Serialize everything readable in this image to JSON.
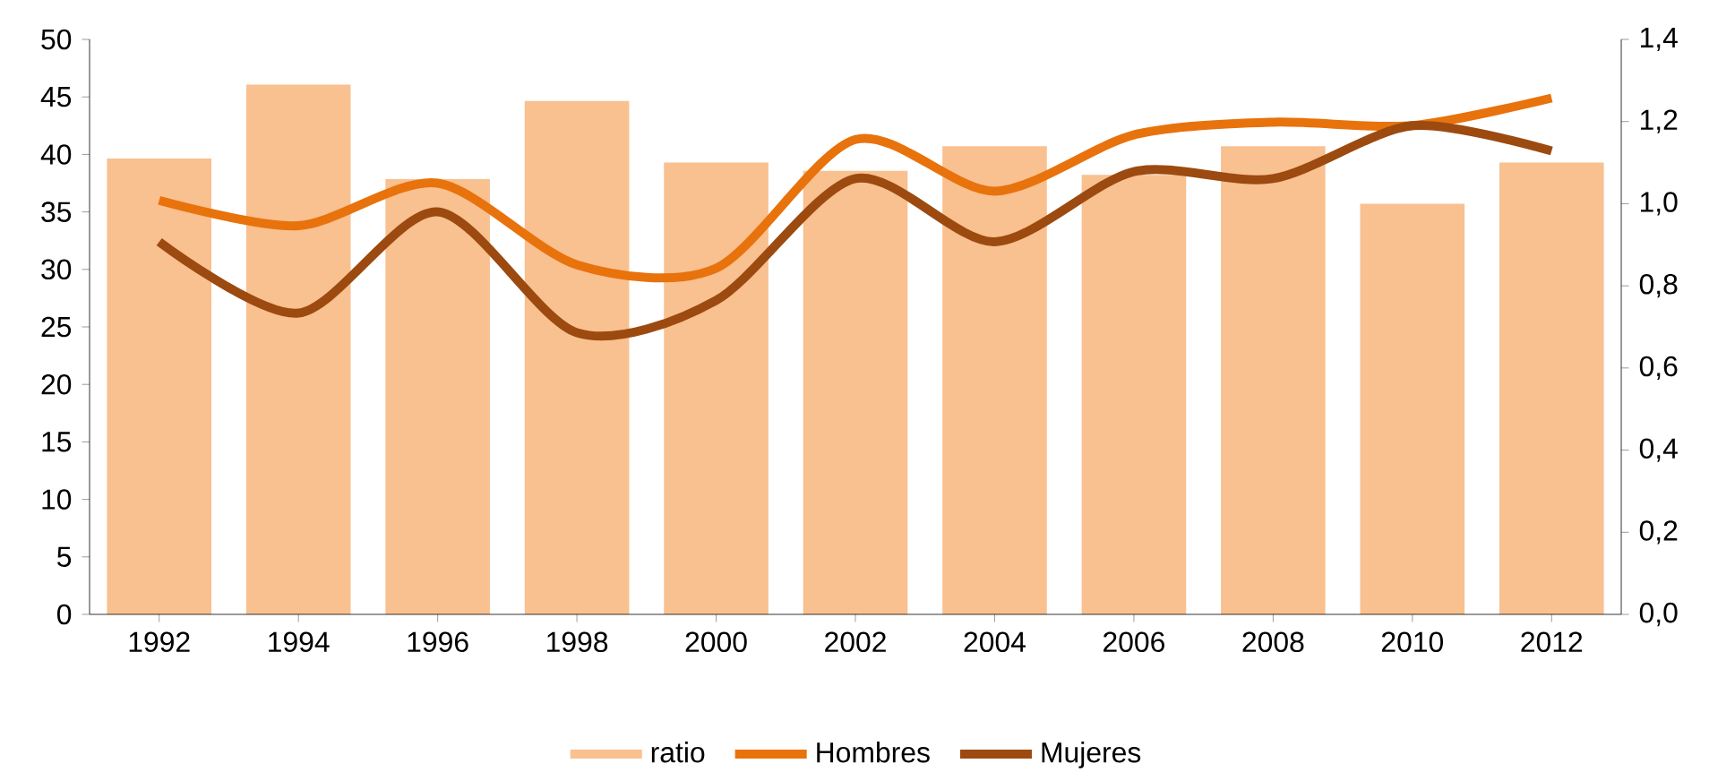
{
  "chart_data": {
    "type": "bar",
    "categories": [
      "1992",
      "1994",
      "1996",
      "1998",
      "2000",
      "2002",
      "2004",
      "2006",
      "2008",
      "2010",
      "2012"
    ],
    "series": [
      {
        "name": "ratio",
        "axis": "y2",
        "color": "#f9c090",
        "values": [
          1.11,
          1.29,
          1.06,
          1.25,
          1.1,
          1.08,
          1.14,
          1.07,
          1.14,
          1.0,
          1.1
        ]
      },
      {
        "name": "Hombres",
        "type": "line",
        "color": "#e8720c",
        "values": [
          36.0,
          33.8,
          37.5,
          30.4,
          30.1,
          41.3,
          36.8,
          41.7,
          42.8,
          42.5,
          44.9
        ]
      },
      {
        "name": "Mujeres",
        "type": "line",
        "color": "#9c4a0f",
        "values": [
          32.4,
          26.2,
          35.0,
          24.5,
          27.3,
          37.9,
          32.4,
          38.5,
          37.9,
          42.5,
          40.3
        ]
      }
    ],
    "ylim": [
      0,
      50
    ],
    "yticks": [
      0,
      5,
      10,
      15,
      20,
      25,
      30,
      35,
      40,
      45,
      50
    ],
    "y2lim": [
      0,
      1.4
    ],
    "y2ticks": [
      {
        "value": 0,
        "label": "0,0"
      },
      {
        "value": 0.2,
        "label": "0,2"
      },
      {
        "value": 0.4,
        "label": "0,4"
      },
      {
        "value": 0.6,
        "label": "0,6"
      },
      {
        "value": 0.8,
        "label": "0,8"
      },
      {
        "value": 1.0,
        "label": "1,0"
      },
      {
        "value": 1.2,
        "label": "1,2"
      },
      {
        "value": 1.4,
        "label": "1,4"
      }
    ],
    "legend": "bottom",
    "grid": false,
    "marker": "none"
  }
}
